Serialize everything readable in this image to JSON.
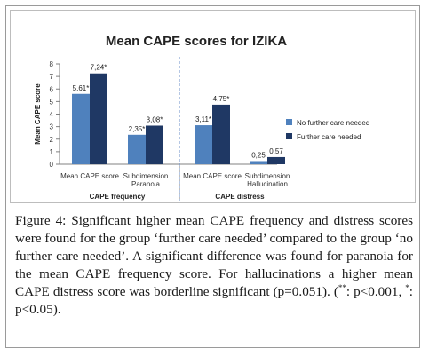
{
  "chart_data": {
    "type": "bar",
    "title": "Mean CAPE scores for IZIKA",
    "ylabel": "Mean CAPE score",
    "ylim": [
      0,
      8
    ],
    "yticks": [
      "0",
      "1",
      "2",
      "3",
      "4",
      "5",
      "6",
      "7",
      "8"
    ],
    "grid": false,
    "legend_position": "right",
    "categories": [
      "Mean CAPE score",
      "Subdimension Paranoia",
      "Mean CAPE score",
      "Subdimension Hallucination"
    ],
    "category_lines": [
      [
        "Mean CAPE score"
      ],
      [
        "Subdimension",
        "Paranoia"
      ],
      [
        "Mean CAPE score"
      ],
      [
        "Subdimension",
        "Hallucination"
      ]
    ],
    "groups": [
      "CAPE frequency",
      "CAPE distress"
    ],
    "series": [
      {
        "name": "No further care needed",
        "color": "#4f81bd",
        "values": [
          5.61,
          2.35,
          3.11,
          0.25
        ],
        "labels": [
          "5,61*",
          "2,35*",
          "3,11*",
          "0,25"
        ]
      },
      {
        "name": "Further care needed",
        "color": "#1f3864",
        "values": [
          7.24,
          3.08,
          4.75,
          0.57
        ],
        "labels": [
          "7,24*",
          "3,08*",
          "4,75*",
          "0,57"
        ]
      }
    ]
  },
  "caption": {
    "label": "Figure 4:",
    "text": " Significant higher mean CAPE frequency and distress scores were found for the group ‘further care needed’ compared to the group ‘no further care needed’. A significant difference was found for paranoia for the mean CAPE frequency score. For hallucinations a higher mean CAPE distress score was borderline significant (p=0.051). (",
    "sig1": "**",
    "sig1_text": ": p<0.001, ",
    "sig2": "*",
    "sig2_text": ": p<0.05)."
  }
}
